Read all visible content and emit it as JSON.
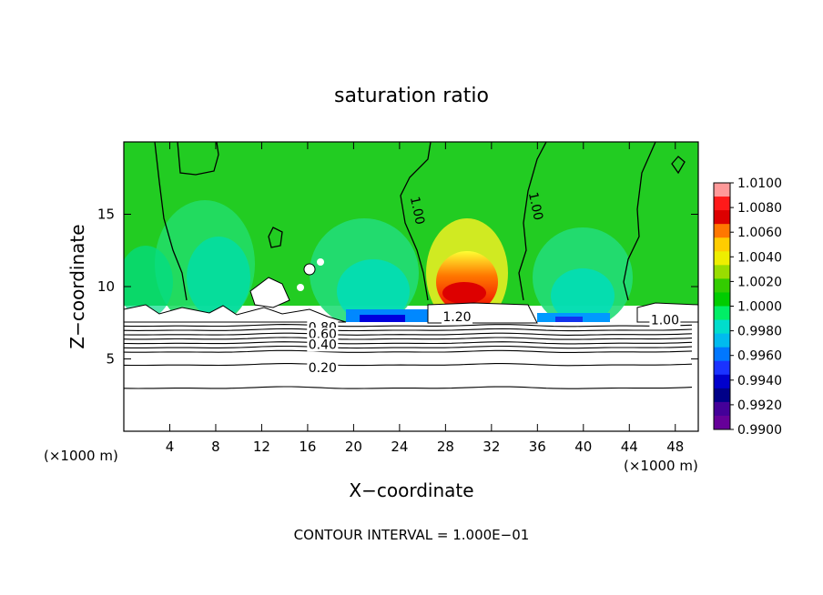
{
  "chart_data": {
    "type": "heatmap",
    "title": "saturation ratio",
    "xlabel": "X−coordinate",
    "ylabel": "Z−coordinate",
    "x_unit_left": "(×1000 m)",
    "x_unit_right": "(×1000 m)",
    "xlim": [
      0,
      50
    ],
    "ylim": [
      0,
      20
    ],
    "x_ticks": [
      4,
      8,
      12,
      16,
      20,
      24,
      28,
      32,
      36,
      40,
      44,
      48
    ],
    "y_ticks": [
      5,
      10,
      15
    ],
    "footer": "CONTOUR INTERVAL = 1.000E−01",
    "colorbar": {
      "min": 0.99,
      "max": 1.01,
      "labels": [
        "1.0100",
        "1.0080",
        "1.0060",
        "1.0040",
        "1.0020",
        "1.0000",
        "0.9980",
        "0.9960",
        "0.9940",
        "0.9920",
        "0.9900"
      ],
      "bands": [
        "#ff9999",
        "#ff1a1a",
        "#dd0000",
        "#ff7700",
        "#ffcc00",
        "#eeee00",
        "#99dd00",
        "#33cc00",
        "#00cc00",
        "#00ee66",
        "#00ddcc",
        "#00bbee",
        "#0077ff",
        "#1a33ff",
        "#0000cc",
        "#000088",
        "#440099",
        "#660099"
      ]
    },
    "contour_labels": [
      {
        "text": "1.00",
        "x": 25.2,
        "z": 15.2,
        "rotate": 78
      },
      {
        "text": "1.00",
        "x": 35.5,
        "z": 15.5,
        "rotate": 78
      },
      {
        "text": "1.20",
        "x": 29.0,
        "z": 7.6,
        "rotate": 0
      },
      {
        "text": "1.00",
        "x": 47.1,
        "z": 7.4,
        "rotate": 0
      },
      {
        "text": "0.80",
        "x": 17.3,
        "z": 6.9,
        "rotate": 0
      },
      {
        "text": "0.60",
        "x": 17.3,
        "z": 6.4,
        "rotate": 0
      },
      {
        "text": "0.40",
        "x": 17.3,
        "z": 5.7,
        "rotate": 0
      },
      {
        "text": "0.20",
        "x": 17.3,
        "z": 4.1,
        "rotate": 0
      }
    ],
    "contour_levels_z": [
      7.3,
      7.0,
      6.7,
      6.4,
      6.1,
      5.8,
      5.5,
      4.6,
      3.0
    ]
  }
}
